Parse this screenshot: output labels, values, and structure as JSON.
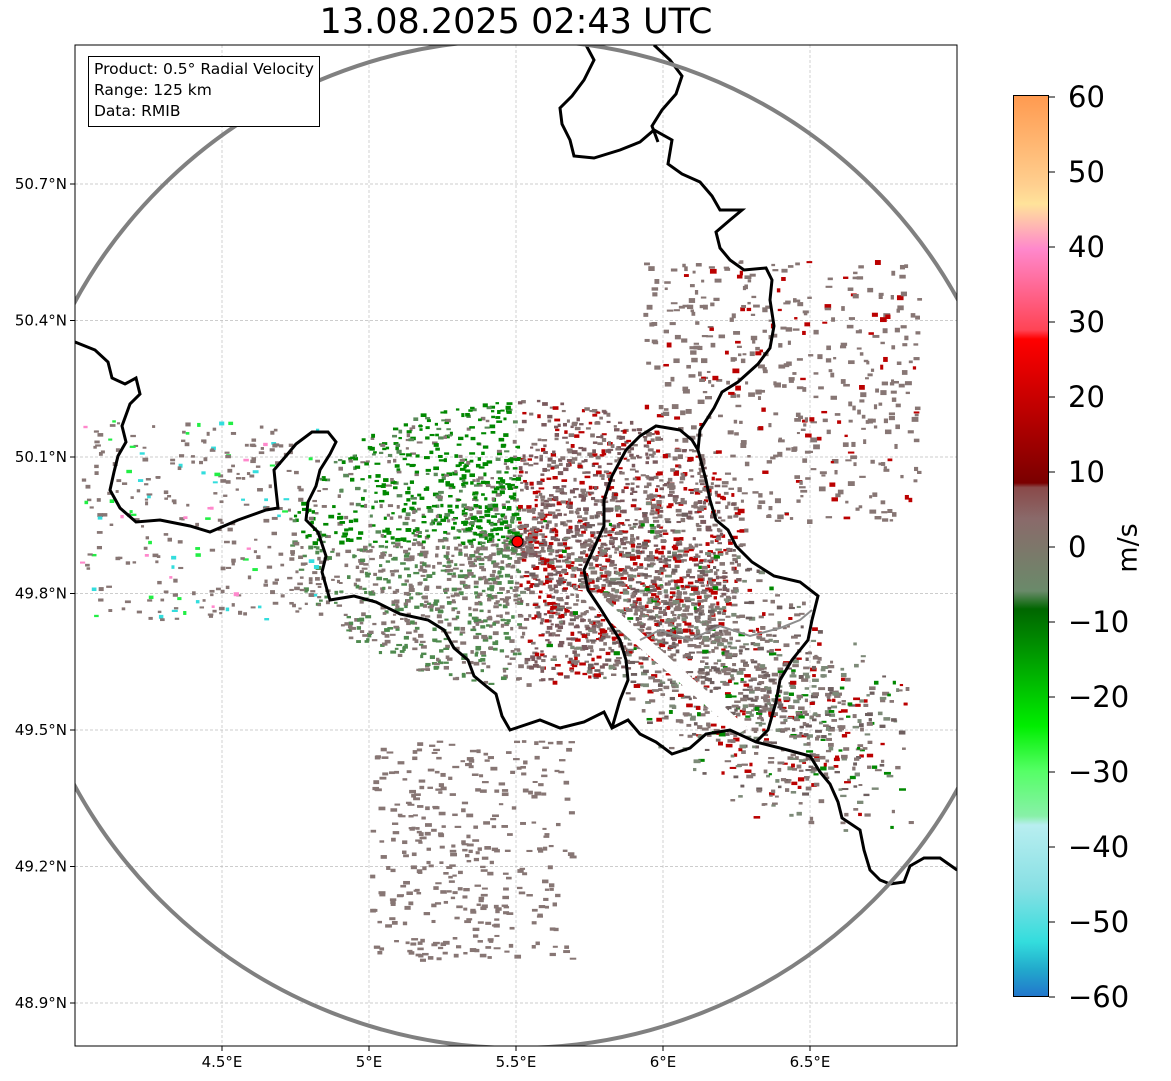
{
  "title": "13.08.2025 02:43 UTC",
  "info_box": {
    "product": "Product: 0.5° Radial Velocity",
    "range": "Range: 125 km",
    "data": "Data: RMIB"
  },
  "axes": {
    "x_ticks": [
      "4.5°E",
      "5°E",
      "5.5°E",
      "6°E",
      "6.5°E"
    ],
    "x_tick_values": [
      4.5,
      5.0,
      5.5,
      6.0,
      6.5
    ],
    "y_ticks": [
      "50.7°N",
      "50.4°N",
      "50.1°N",
      "49.8°N",
      "49.5°N",
      "49.2°N",
      "48.9°N"
    ],
    "y_tick_values": [
      50.7,
      50.4,
      50.1,
      49.8,
      49.5,
      49.2,
      48.9
    ],
    "lon_range": [
      4.0,
      7.0
    ],
    "lat_range": [
      48.8,
      51.0
    ],
    "grid": true
  },
  "radar_site": {
    "lon": 5.505,
    "lat": 49.914
  },
  "colorbar": {
    "label": "m/s",
    "ticks": [
      "60",
      "50",
      "40",
      "30",
      "20",
      "10",
      "0",
      "−10",
      "−20",
      "−30",
      "−40",
      "−50",
      "−60"
    ],
    "tick_values": [
      60,
      50,
      40,
      30,
      20,
      10,
      0,
      -10,
      -20,
      -30,
      -40,
      -50,
      -60
    ],
    "range": [
      -60,
      60
    ],
    "colors": {
      "high_orange": "#ff9a50",
      "light_orange": "#ffd090",
      "pink": "#ff88cc",
      "red": "#ff0000",
      "dark_red": "#7a0000",
      "brown_gray": "#8a6a6a",
      "gray_green": "#6a8a6a",
      "dark_green": "#006600",
      "green": "#00ee00",
      "light_green": "#88f0a8",
      "light_cyan": "#b8eef0",
      "cyan": "#33dddd",
      "blue": "#2277cc"
    }
  },
  "colors": {
    "range_ring": "#808080",
    "border": "#000000",
    "grid": "#bdbdbd",
    "radar_marker": "#ff0000",
    "echo_gray": "#877674",
    "echo_green": "#008800",
    "echo_red": "#bb0000"
  }
}
